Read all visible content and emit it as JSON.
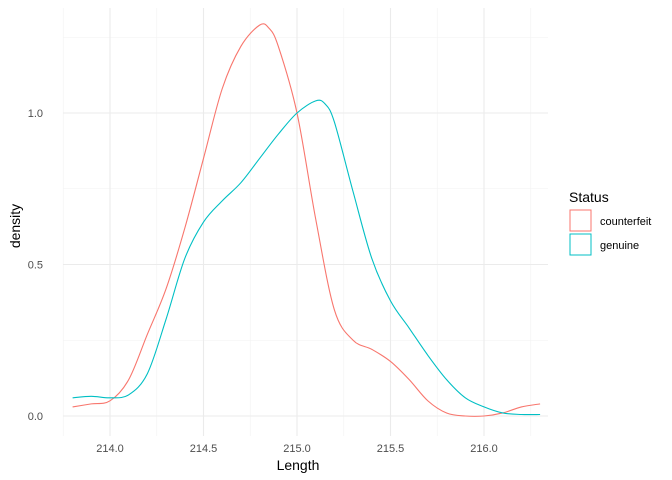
{
  "chart_data": {
    "type": "line",
    "xlabel": "Length",
    "ylabel": "density",
    "xlim": [
      213.8,
      216.3
    ],
    "ylim": [
      0,
      1.3
    ],
    "x_ticks": [
      {
        "value": 214.0,
        "label": "214.0"
      },
      {
        "value": 214.5,
        "label": "214.5"
      },
      {
        "value": 215.0,
        "label": "215.0"
      },
      {
        "value": 215.5,
        "label": "215.5"
      },
      {
        "value": 216.0,
        "label": "216.0"
      }
    ],
    "y_ticks": [
      {
        "value": 0.0,
        "label": "0.0"
      },
      {
        "value": 0.5,
        "label": "0.5"
      },
      {
        "value": 1.0,
        "label": "1.0"
      }
    ],
    "grid": true,
    "legend": {
      "title": "Status",
      "placement": "right"
    },
    "series": [
      {
        "name": "counterfeit",
        "color": "#F8766D",
        "x": [
          213.8,
          213.9,
          214.0,
          214.1,
          214.2,
          214.3,
          214.4,
          214.5,
          214.6,
          214.7,
          214.8,
          214.85,
          214.9,
          215.0,
          215.1,
          215.2,
          215.3,
          215.4,
          215.5,
          215.6,
          215.7,
          215.8,
          215.9,
          216.0,
          216.1,
          216.2,
          216.3
        ],
        "y": [
          0.03,
          0.04,
          0.05,
          0.12,
          0.27,
          0.42,
          0.62,
          0.85,
          1.08,
          1.22,
          1.29,
          1.28,
          1.22,
          1.0,
          0.65,
          0.35,
          0.25,
          0.22,
          0.18,
          0.12,
          0.05,
          0.01,
          0.0,
          0.0,
          0.01,
          0.03,
          0.04
        ]
      },
      {
        "name": "genuine",
        "color": "#00BFC4",
        "x": [
          213.8,
          213.9,
          214.0,
          214.1,
          214.2,
          214.3,
          214.4,
          214.5,
          214.6,
          214.7,
          214.8,
          214.9,
          215.0,
          215.1,
          215.15,
          215.2,
          215.3,
          215.4,
          215.5,
          215.6,
          215.7,
          215.8,
          215.9,
          216.0,
          216.1,
          216.2,
          216.3
        ],
        "y": [
          0.06,
          0.065,
          0.06,
          0.07,
          0.14,
          0.32,
          0.52,
          0.64,
          0.71,
          0.77,
          0.85,
          0.93,
          1.0,
          1.04,
          1.03,
          0.97,
          0.74,
          0.52,
          0.38,
          0.29,
          0.2,
          0.12,
          0.06,
          0.03,
          0.01,
          0.005,
          0.005
        ]
      }
    ]
  }
}
